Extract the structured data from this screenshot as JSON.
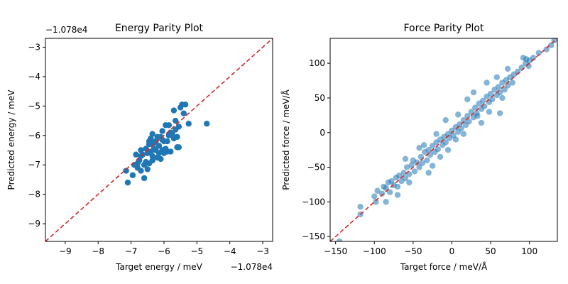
{
  "chart_data": [
    {
      "type": "scatter",
      "title": "Energy Parity Plot",
      "xlabel": "Target energy / meV",
      "ylabel": "Predicted energy / meV",
      "x_offset_text": "−1.078e4",
      "y_offset_text": "−1.078e4",
      "xlim": [
        -9.6,
        -2.7
      ],
      "ylim": [
        -9.6,
        -2.7
      ],
      "xticks": [
        -9,
        -8,
        -7,
        -6,
        -5,
        -4,
        -3
      ],
      "yticks": [
        -9,
        -8,
        -7,
        -6,
        -5,
        -4,
        -3
      ],
      "xtick_labels": [
        "−9",
        "−8",
        "−7",
        "−6",
        "−5",
        "−4",
        "−3"
      ],
      "ytick_labels": [
        "−9",
        "−8",
        "−7",
        "−6",
        "−5",
        "−4",
        "−3"
      ],
      "parity_line": "y = x",
      "grid": false,
      "colors": {
        "points": "#1f77b4",
        "parity": "#d62728"
      },
      "points": [
        [
          -7.1,
          -7.6
        ],
        [
          -7.15,
          -7.2
        ],
        [
          -6.95,
          -7.35
        ],
        [
          -6.8,
          -7.1
        ],
        [
          -6.75,
          -6.85
        ],
        [
          -6.6,
          -7.45
        ],
        [
          -6.85,
          -6.65
        ],
        [
          -6.7,
          -6.7
        ],
        [
          -6.55,
          -6.9
        ],
        [
          -6.5,
          -6.6
        ],
        [
          -6.45,
          -6.3
        ],
        [
          -6.4,
          -6.1
        ],
        [
          -6.35,
          -5.95
        ],
        [
          -6.3,
          -6.25
        ],
        [
          -6.25,
          -6.5
        ],
        [
          -6.2,
          -6.75
        ],
        [
          -6.15,
          -6.35
        ],
        [
          -6.1,
          -6.05
        ],
        [
          -6.05,
          -5.85
        ],
        [
          -6.0,
          -6.6
        ],
        [
          -5.95,
          -6.45
        ],
        [
          -5.9,
          -6.2
        ],
        [
          -5.85,
          -5.65
        ],
        [
          -5.8,
          -6.55
        ],
        [
          -5.75,
          -5.95
        ],
        [
          -5.7,
          -6.1
        ],
        [
          -5.65,
          -5.5
        ],
        [
          -5.6,
          -6.4
        ],
        [
          -5.55,
          -5.7
        ],
        [
          -5.7,
          -5.15
        ],
        [
          -5.5,
          -5.05
        ],
        [
          -5.45,
          -4.95
        ],
        [
          -5.35,
          -4.95
        ],
        [
          -5.4,
          -5.25
        ],
        [
          -5.25,
          -5.6
        ],
        [
          -4.7,
          -5.6
        ],
        [
          -6.6,
          -7.0
        ],
        [
          -6.7,
          -7.2
        ],
        [
          -6.5,
          -7.15
        ],
        [
          -6.45,
          -6.95
        ],
        [
          -6.35,
          -6.7
        ],
        [
          -6.3,
          -6.45
        ],
        [
          -6.55,
          -6.45
        ],
        [
          -6.25,
          -6.2
        ],
        [
          -6.2,
          -6.05
        ],
        [
          -6.05,
          -6.5
        ],
        [
          -6.0,
          -6.2
        ],
        [
          -6.1,
          -6.8
        ],
        [
          -5.95,
          -5.65
        ],
        [
          -5.85,
          -6.0
        ],
        [
          -5.8,
          -5.9
        ],
        [
          -5.65,
          -5.8
        ],
        [
          -5.6,
          -6.05
        ],
        [
          -5.55,
          -6.4
        ],
        [
          -6.65,
          -6.65
        ],
        [
          -6.8,
          -6.95
        ],
        [
          -6.9,
          -7.0
        ],
        [
          -6.7,
          -6.5
        ],
        [
          -6.4,
          -6.55
        ],
        [
          -6.15,
          -6.6
        ],
        [
          -6.35,
          -6.85
        ],
        [
          -6.05,
          -6.15
        ],
        [
          -5.9,
          -6.55
        ],
        [
          -6.45,
          -6.2
        ]
      ]
    },
    {
      "type": "scatter",
      "title": "Force Parity Plot",
      "xlabel": "Target force / meV/Å",
      "ylabel": "Predicted force / meV/Å",
      "xlim": [
        -157,
        136
      ],
      "ylim": [
        -157,
        136
      ],
      "xticks": [
        -150,
        -100,
        -50,
        0,
        50,
        100
      ],
      "yticks": [
        -150,
        -100,
        -50,
        0,
        50,
        100
      ],
      "xtick_labels": [
        "−150",
        "−100",
        "−50",
        "0",
        "50",
        "100"
      ],
      "ytick_labels": [
        "−150",
        "−100",
        "−50",
        "0",
        "50",
        "100"
      ],
      "parity_line": "y = x",
      "grid": false,
      "colors": {
        "points": "#1f77b4",
        "parity": "#d62728"
      },
      "points": [
        [
          -145,
          -157
        ],
        [
          -118,
          -118
        ],
        [
          -118,
          -107
        ],
        [
          -100,
          -92
        ],
        [
          -98,
          -100
        ],
        [
          -96,
          -84
        ],
        [
          -90,
          -88
        ],
        [
          -88,
          -78
        ],
        [
          -85,
          -80
        ],
        [
          -82,
          -72
        ],
        [
          -80,
          -86
        ],
        [
          -78,
          -70
        ],
        [
          -75,
          -76
        ],
        [
          -72,
          -65
        ],
        [
          -70,
          -78
        ],
        [
          -68,
          -62
        ],
        [
          -65,
          -70
        ],
        [
          -62,
          -58
        ],
        [
          -60,
          -66
        ],
        [
          -58,
          -50
        ],
        [
          -55,
          -60
        ],
        [
          -52,
          -47
        ],
        [
          -50,
          -40
        ],
        [
          -48,
          -56
        ],
        [
          -45,
          -43
        ],
        [
          -42,
          -50
        ],
        [
          -40,
          -35
        ],
        [
          -38,
          -44
        ],
        [
          -35,
          -28
        ],
        [
          -32,
          -40
        ],
        [
          -30,
          -25
        ],
        [
          -28,
          -32
        ],
        [
          -25,
          -19
        ],
        [
          -22,
          -28
        ],
        [
          -20,
          -14
        ],
        [
          -18,
          -24
        ],
        [
          -15,
          -10
        ],
        [
          -12,
          -18
        ],
        [
          -10,
          -6
        ],
        [
          -8,
          -14
        ],
        [
          -5,
          -2
        ],
        [
          -3,
          -8
        ],
        [
          0,
          3
        ],
        [
          2,
          -4
        ],
        [
          5,
          8
        ],
        [
          8,
          1
        ],
        [
          10,
          12
        ],
        [
          12,
          6
        ],
        [
          15,
          18
        ],
        [
          18,
          11
        ],
        [
          20,
          24
        ],
        [
          22,
          16
        ],
        [
          25,
          30
        ],
        [
          28,
          22
        ],
        [
          30,
          36
        ],
        [
          32,
          28
        ],
        [
          35,
          42
        ],
        [
          38,
          34
        ],
        [
          40,
          46
        ],
        [
          42,
          38
        ],
        [
          45,
          52
        ],
        [
          48,
          44
        ],
        [
          50,
          56
        ],
        [
          52,
          48
        ],
        [
          55,
          62
        ],
        [
          58,
          54
        ],
        [
          60,
          66
        ],
        [
          62,
          58
        ],
        [
          65,
          72
        ],
        [
          68,
          62
        ],
        [
          70,
          76
        ],
        [
          72,
          68
        ],
        [
          75,
          80
        ],
        [
          78,
          72
        ],
        [
          80,
          84
        ],
        [
          85,
          88
        ],
        [
          90,
          94
        ],
        [
          95,
          100
        ],
        [
          100,
          104
        ],
        [
          105,
          108
        ],
        [
          112,
          115
        ],
        [
          122,
          120
        ],
        [
          128,
          126
        ],
        [
          132,
          133
        ],
        [
          -8,
          18
        ],
        [
          5,
          -10
        ],
        [
          28,
          58
        ],
        [
          62,
          28
        ],
        [
          -42,
          -22
        ],
        [
          -30,
          -58
        ],
        [
          45,
          72
        ],
        [
          -60,
          -38
        ],
        [
          -15,
          -35
        ],
        [
          20,
          48
        ],
        [
          92,
          108
        ],
        [
          96,
          106
        ],
        [
          99,
          96
        ],
        [
          -55,
          -72
        ],
        [
          38,
          14
        ],
        [
          -70,
          -90
        ],
        [
          72,
          92
        ],
        [
          15,
          -2
        ],
        [
          -25,
          -48
        ],
        [
          58,
          80
        ],
        [
          -85,
          -100
        ],
        [
          33,
          24
        ],
        [
          -36,
          -18
        ],
        [
          48,
          30
        ],
        [
          8,
          26
        ],
        [
          -20,
          -2
        ],
        [
          65,
          50
        ],
        [
          -5,
          -25
        ]
      ]
    }
  ]
}
